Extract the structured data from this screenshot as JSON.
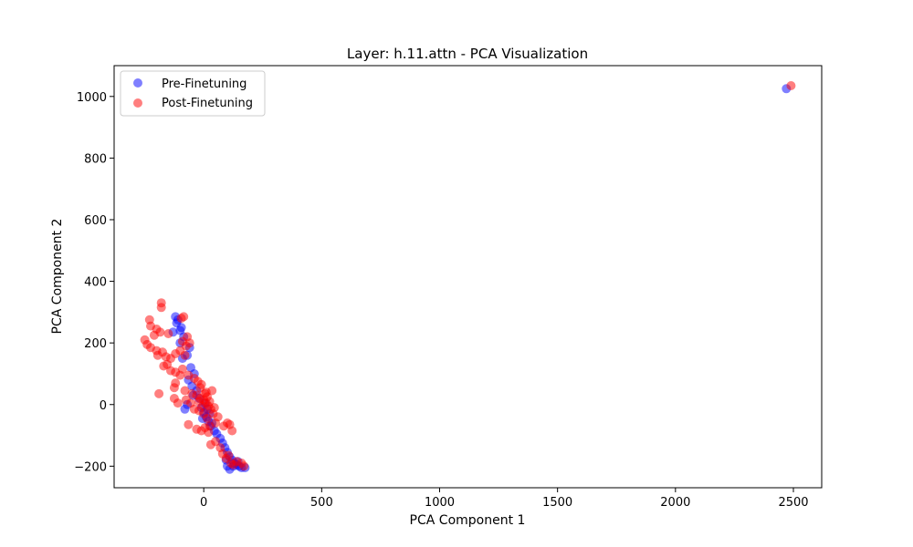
{
  "chart_data": {
    "type": "scatter",
    "title": "Layer: h.11.attn - PCA Visualization",
    "xlabel": "PCA Component 1",
    "ylabel": "PCA Component 2",
    "xlim": [
      -380,
      2620
    ],
    "ylim": [
      -270,
      1100
    ],
    "x_ticks": [
      0,
      500,
      1000,
      1500,
      2000,
      2500
    ],
    "y_ticks": [
      -200,
      0,
      200,
      400,
      600,
      800,
      1000
    ],
    "grid": false,
    "legend_position": "upper-left",
    "series": [
      {
        "name": "Pre-Finetuning",
        "color": "#0000ff",
        "points": [
          [
            -120,
            285
          ],
          [
            -110,
            275
          ],
          [
            -95,
            250
          ],
          [
            -100,
            240
          ],
          [
            -130,
            235
          ],
          [
            -85,
            220
          ],
          [
            -60,
            185
          ],
          [
            -70,
            160
          ],
          [
            -90,
            150
          ],
          [
            -55,
            120
          ],
          [
            -40,
            100
          ],
          [
            -65,
            80
          ],
          [
            -50,
            60
          ],
          [
            -30,
            45
          ],
          [
            -45,
            30
          ],
          [
            -20,
            20
          ],
          [
            -70,
            0
          ],
          [
            -80,
            -15
          ],
          [
            -10,
            -10
          ],
          [
            0,
            -25
          ],
          [
            10,
            -40
          ],
          [
            20,
            -55
          ],
          [
            30,
            -70
          ],
          [
            45,
            -85
          ],
          [
            5,
            5
          ],
          [
            15,
            -15
          ],
          [
            25,
            -30
          ],
          [
            -5,
            -45
          ],
          [
            35,
            -60
          ],
          [
            55,
            -95
          ],
          [
            70,
            -110
          ],
          [
            80,
            -125
          ],
          [
            90,
            -140
          ],
          [
            100,
            -155
          ],
          [
            110,
            -170
          ],
          [
            120,
            -180
          ],
          [
            130,
            -190
          ],
          [
            140,
            -195
          ],
          [
            150,
            -200
          ],
          [
            160,
            -205
          ],
          [
            175,
            -205
          ],
          [
            110,
            -210
          ],
          [
            100,
            -200
          ],
          [
            125,
            -200
          ],
          [
            95,
            -180
          ],
          [
            145,
            -185
          ],
          [
            -100,
            200
          ],
          [
            -115,
            265
          ]
        ]
      },
      {
        "name": "Post-Finetuning",
        "color": "#ff0000",
        "points": [
          [
            -180,
            330
          ],
          [
            -180,
            315
          ],
          [
            -230,
            275
          ],
          [
            -225,
            255
          ],
          [
            -200,
            245
          ],
          [
            -185,
            235
          ],
          [
            -210,
            225
          ],
          [
            -150,
            230
          ],
          [
            -250,
            210
          ],
          [
            -240,
            195
          ],
          [
            -225,
            185
          ],
          [
            -200,
            175
          ],
          [
            -195,
            160
          ],
          [
            -175,
            170
          ],
          [
            -160,
            155
          ],
          [
            -140,
            150
          ],
          [
            -120,
            165
          ],
          [
            -100,
            175
          ],
          [
            -80,
            160
          ],
          [
            -75,
            190
          ],
          [
            -90,
            205
          ],
          [
            -60,
            200
          ],
          [
            -70,
            220
          ],
          [
            -85,
            285
          ],
          [
            -95,
            280
          ],
          [
            -155,
            130
          ],
          [
            -170,
            125
          ],
          [
            -140,
            110
          ],
          [
            -120,
            105
          ],
          [
            -90,
            115
          ],
          [
            -65,
            95
          ],
          [
            -40,
            85
          ],
          [
            -25,
            75
          ],
          [
            -10,
            65
          ],
          [
            -100,
            95
          ],
          [
            -120,
            70
          ],
          [
            -125,
            55
          ],
          [
            -80,
            45
          ],
          [
            -50,
            35
          ],
          [
            -30,
            30
          ],
          [
            -15,
            20
          ],
          [
            0,
            15
          ],
          [
            10,
            5
          ],
          [
            20,
            -5
          ],
          [
            30,
            -15
          ],
          [
            -5,
            -5
          ],
          [
            -20,
            10
          ],
          [
            5,
            35
          ],
          [
            15,
            25
          ],
          [
            25,
            10
          ],
          [
            40,
            -30
          ],
          [
            35,
            45
          ],
          [
            -125,
            20
          ],
          [
            -110,
            5
          ],
          [
            -190,
            35
          ],
          [
            -75,
            15
          ],
          [
            -55,
            5
          ],
          [
            -40,
            -15
          ],
          [
            -20,
            -20
          ],
          [
            0,
            -30
          ],
          [
            15,
            -45
          ],
          [
            -65,
            -65
          ],
          [
            -10,
            -85
          ],
          [
            5,
            -75
          ],
          [
            20,
            -90
          ],
          [
            45,
            -10
          ],
          [
            50,
            -60
          ],
          [
            60,
            -40
          ],
          [
            85,
            -70
          ],
          [
            100,
            -60
          ],
          [
            110,
            -65
          ],
          [
            120,
            -85
          ],
          [
            30,
            -130
          ],
          [
            50,
            -120
          ],
          [
            70,
            -140
          ],
          [
            80,
            -160
          ],
          [
            95,
            -175
          ],
          [
            105,
            -165
          ],
          [
            115,
            -190
          ],
          [
            125,
            -195
          ],
          [
            140,
            -185
          ],
          [
            160,
            -190
          ],
          [
            170,
            -200
          ],
          [
            -30,
            -80
          ],
          [
            -15,
            55
          ],
          [
            10,
            40
          ],
          [
            25,
            -70
          ],
          [
            2490,
            1035
          ]
        ]
      }
    ],
    "extra_points": {
      "Pre-Finetuning": [
        [
          2470,
          1025
        ]
      ]
    }
  }
}
